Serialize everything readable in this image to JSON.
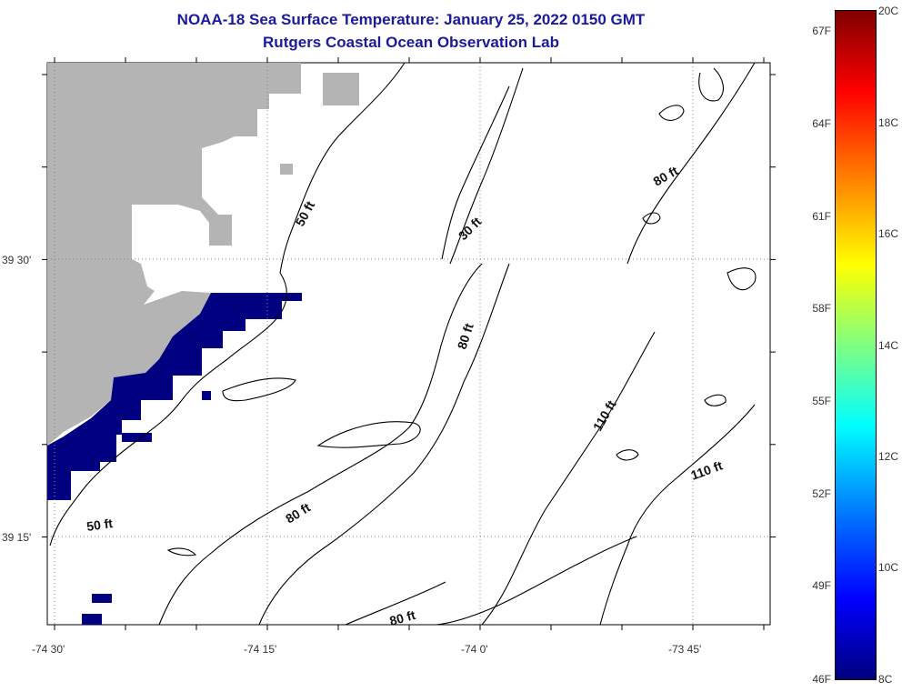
{
  "header": {
    "title": "NOAA-18 Sea Surface Temperature:  January 25, 2022 0150 GMT",
    "subtitle": "Rutgers Coastal Ocean Observation Lab"
  },
  "map": {
    "lat_labels": [
      "39 30'",
      "39 15'"
    ],
    "lon_labels": [
      "-74 30'",
      "-74 15'",
      "-74 0'",
      "-73 45'"
    ],
    "contour_labels": [
      "50 ft",
      "30 ft",
      "80 ft",
      "80 ft",
      "110 ft",
      "110 ft",
      "80 ft",
      "50 ft",
      "80 ft"
    ],
    "colors": {
      "land": "#b4b4b4",
      "cold_sst": "#000080",
      "contour": "#000000",
      "grid": "#888888"
    }
  },
  "colorbar": {
    "fahrenheit": [
      "67F",
      "64F",
      "61F",
      "58F",
      "55F",
      "52F",
      "49F",
      "46F"
    ],
    "celsius": [
      "20C",
      "18C",
      "16C",
      "14C",
      "12C",
      "10C",
      "8C"
    ]
  }
}
